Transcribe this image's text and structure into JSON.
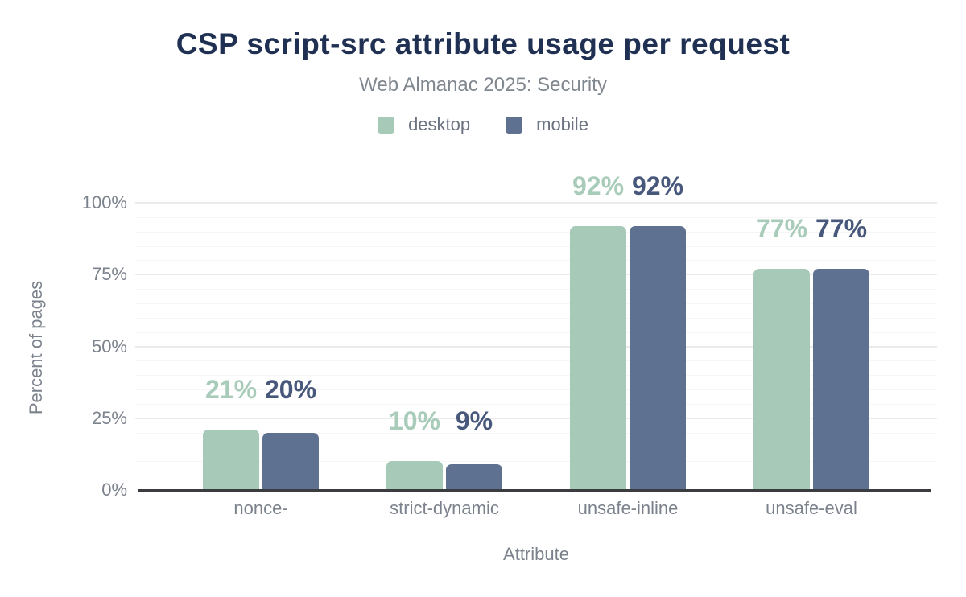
{
  "chart_data": {
    "type": "bar",
    "title": "CSP script-src attribute usage per request",
    "subtitle": "Web Almanac 2025: Security",
    "xlabel": "Attribute",
    "ylabel": "Percent of pages",
    "categories": [
      "nonce-",
      "strict-dynamic",
      "unsafe-inline",
      "unsafe-eval"
    ],
    "series": [
      {
        "name": "desktop",
        "color": "#a7c9b8",
        "label_color": "#a9ccba",
        "values": [
          21,
          10,
          92,
          77
        ]
      },
      {
        "name": "mobile",
        "color": "#5e7190",
        "label_color": "#47587b",
        "values": [
          20,
          9,
          92,
          77
        ]
      }
    ],
    "value_suffix": "%",
    "ylim": [
      0,
      100
    ],
    "yticks": [
      0,
      25,
      50,
      75,
      100
    ],
    "ytick_labels": [
      "0%",
      "25%",
      "50%",
      "75%",
      "100%"
    ],
    "minor_grid_step": 5,
    "grid": "horizontal",
    "legend_position": "top"
  },
  "colors": {
    "background": "#ffffff",
    "title": "#1f3052",
    "subtitle": "#81878f",
    "axis_text": "#7b828c",
    "axis_line": "#3a3c3f"
  }
}
